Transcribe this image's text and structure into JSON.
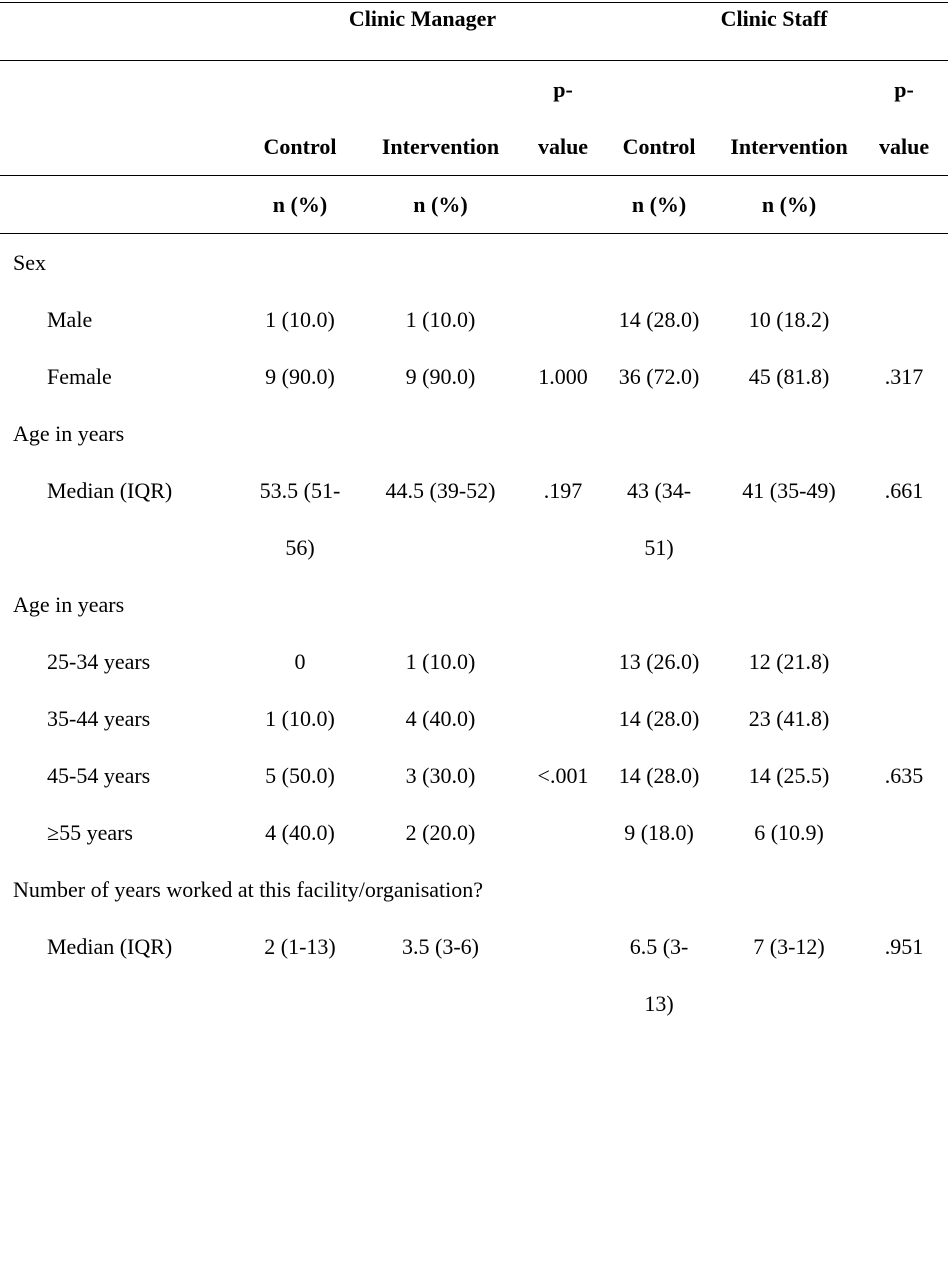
{
  "table": {
    "header_groups": [
      "Clinic Manager",
      "Clinic Staff"
    ],
    "column_headers": [
      "Control",
      "Intervention",
      "p-value",
      "Control",
      "Intervention",
      "p-value"
    ],
    "units": [
      "n (%)",
      "n (%)",
      null,
      "n (%)",
      "n (%)",
      null
    ],
    "rows": [
      [
        "Sex"
      ],
      [
        "Male",
        "1 (10.0)",
        "1 (10.0)",
        null,
        "14 (28.0)",
        "10 (18.2)",
        null
      ],
      [
        "Female",
        "9 (90.0)",
        "9 (90.0)",
        "1.000",
        "36 (72.0)",
        "45 (81.8)",
        ".317"
      ],
      [
        "Age in years"
      ],
      [
        "Median (IQR)",
        "53.5 (51-56)",
        "44.5 (39-52)",
        ".197",
        "43 (34-51)",
        "41 (35-49)",
        ".661"
      ],
      [
        "Age in years"
      ],
      [
        "25-34 years",
        "0",
        "1 (10.0)",
        null,
        "13 (26.0)",
        "12 (21.8)",
        null
      ],
      [
        "35-44 years",
        "1 (10.0)",
        "4 (40.0)",
        null,
        "14 (28.0)",
        "23 (41.8)",
        null
      ],
      [
        "45-54 years",
        "5 (50.0)",
        "3 (30.0)",
        "<.001",
        "14 (28.0)",
        "14 (25.5)",
        ".635"
      ],
      [
        "≥55 years",
        "4 (40.0)",
        "2 (20.0)",
        null,
        "9 (18.0)",
        "6 (10.9)",
        null
      ],
      [
        "Number of years worked at this facility/organisation?"
      ],
      [
        "Median (IQR)",
        "2 (1-13)",
        "3.5 (3-6)",
        null,
        "6.5 (3-13)",
        "7 (3-12)",
        ".951"
      ]
    ]
  }
}
